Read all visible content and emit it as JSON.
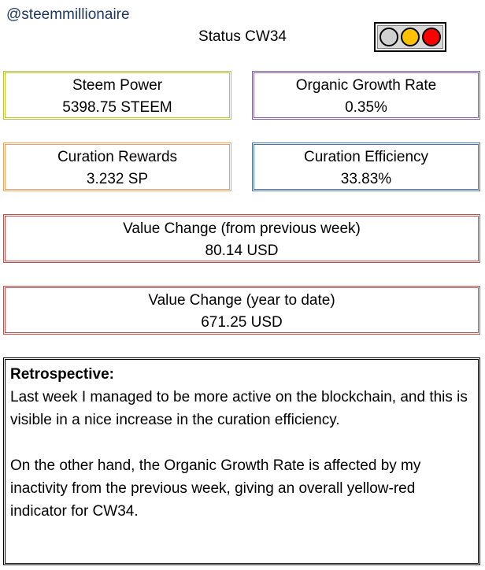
{
  "header": {
    "handle": "@steemmillionaire",
    "status_title": "Status CW34",
    "traffic_light": {
      "bulbs": [
        {
          "name": "grey",
          "color": "#d0d0d0"
        },
        {
          "name": "yellow",
          "color": "#ffc000"
        },
        {
          "name": "red",
          "color": "#ff0000"
        }
      ]
    }
  },
  "colors": {
    "handle_text": "#1f3864",
    "steem_power_border": "#b6c73a",
    "organic_growth_border": "#7e5fa8",
    "curation_rewards_border": "#f0a060",
    "curation_efficiency_border": "#4a70b8",
    "value_change_border": "#c0504d"
  },
  "metrics": {
    "steem_power": {
      "label": "Steem Power",
      "value": "5398.75 STEEM"
    },
    "organic_growth": {
      "label": "Organic Growth Rate",
      "value": "0.35%"
    },
    "curation_rewards": {
      "label": "Curation Rewards",
      "value": "3.232 SP"
    },
    "curation_efficiency": {
      "label": "Curation Efficiency",
      "value": "33.83%"
    },
    "value_change_week": {
      "label": "Value Change (from previous week)",
      "value": "80.14 USD"
    },
    "value_change_ytd": {
      "label": "Value Change (year to date)",
      "value": "671.25 USD"
    }
  },
  "retrospective": {
    "heading": "Retrospective:",
    "paragraph1": "Last week I managed to be more active on the blockchain, and this is visible in a nice increase in the curation efficiency.",
    "paragraph2": "On the other hand, the Organic Growth Rate is affected by my inactivity from the previous week, giving an overall yellow-red indicator for CW34."
  }
}
